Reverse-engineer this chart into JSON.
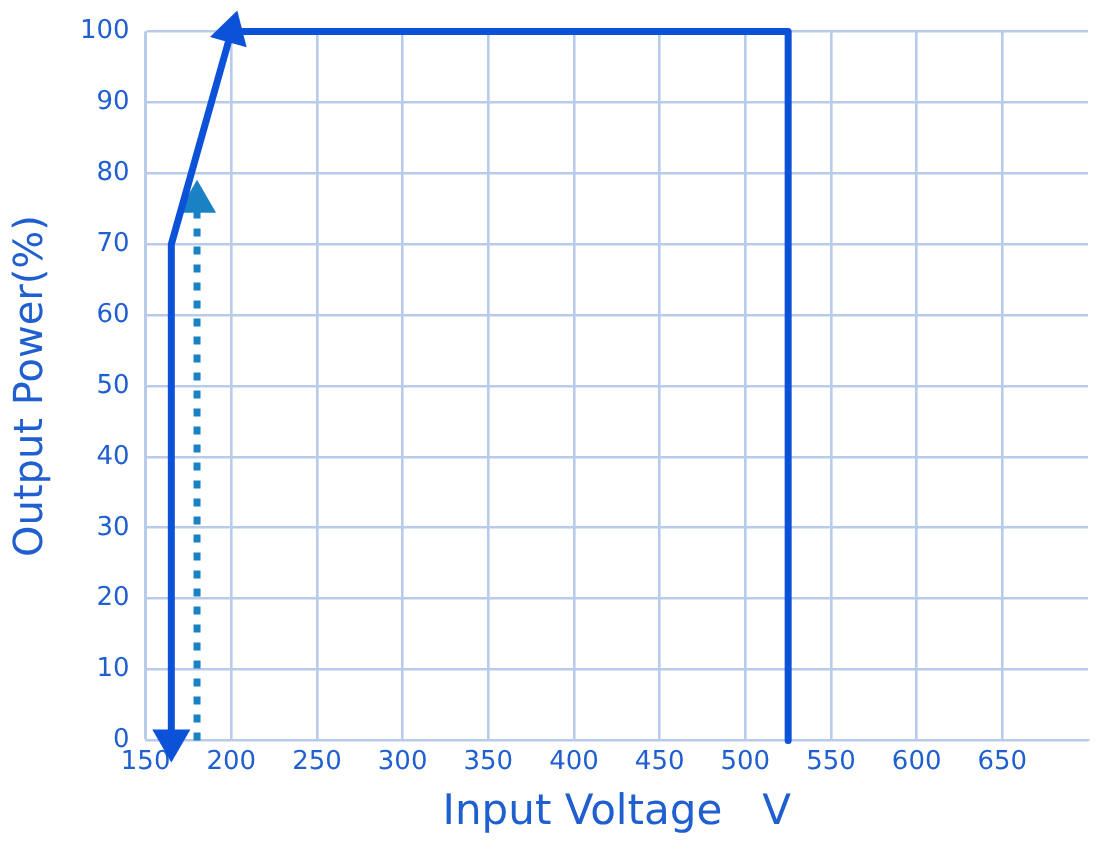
{
  "chart_data": {
    "type": "line",
    "xlabel": "Input Voltage   V",
    "ylabel": "Output Power(%)",
    "xlim": [
      150,
      700
    ],
    "xticks": [
      150,
      200,
      250,
      300,
      350,
      400,
      450,
      500,
      550,
      600,
      650
    ],
    "ylim": [
      0,
      100
    ],
    "yticks": [
      0,
      10,
      20,
      30,
      40,
      50,
      60,
      70,
      80,
      90,
      100
    ],
    "grid": true,
    "legend": false,
    "series": [
      {
        "color": "#0b52d9",
        "x": [
          165,
          165,
          200,
          525,
          525
        ],
        "values": [
          0,
          70,
          100,
          100,
          0
        ],
        "line_style": "solid"
      },
      {
        "color": "#1a82c4",
        "x": [
          180,
          180
        ],
        "values": [
          0,
          76
        ],
        "line_style": "dotted",
        "marker": "triangle"
      }
    ]
  }
}
